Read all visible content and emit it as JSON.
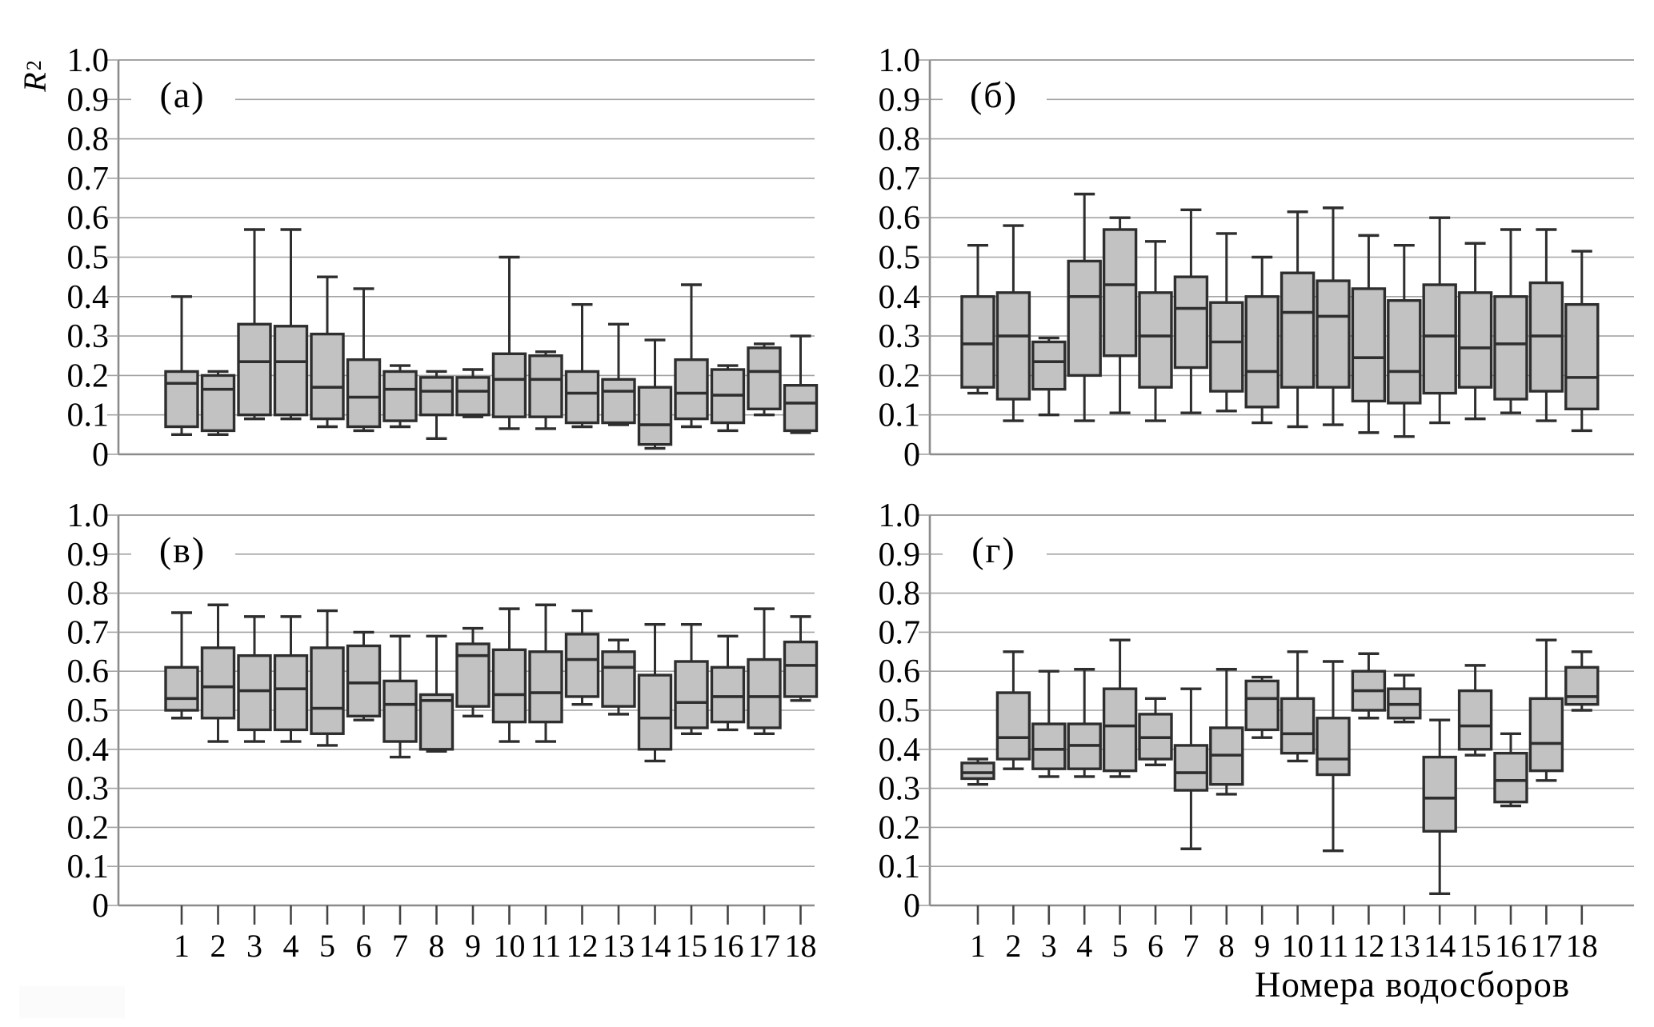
{
  "figure": {
    "y_axis_title_base": "R",
    "y_axis_title_sup": "2",
    "x_axis_title": "Номера водосборов",
    "y_tick_labels": [
      "1.0",
      "0.9",
      "0.8",
      "0.7",
      "0.6",
      "0.5",
      "0.4",
      "0.3",
      "0.2",
      "0.1",
      "0"
    ],
    "x_categories": [
      "1",
      "2",
      "3",
      "4",
      "5",
      "6",
      "7",
      "8",
      "9",
      "10",
      "11",
      "12",
      "13",
      "14",
      "15",
      "16",
      "17",
      "18"
    ]
  },
  "colors": {
    "background": "#ffffff",
    "box_fill": "#c2c2c2",
    "box_stroke": "#2e2e2e",
    "grid": "#a3a3a3",
    "axis": "#8c8c8c",
    "text": "#000000"
  },
  "chart_data": [
    {
      "type": "boxplot",
      "panel_label": "(а)",
      "position": "top-left",
      "ylabel": "R2",
      "ylim": [
        0,
        1.0
      ],
      "ytick_step": 0.1,
      "grid": true,
      "categories": [
        1,
        2,
        3,
        4,
        5,
        6,
        7,
        8,
        9,
        10,
        11,
        12,
        13,
        14,
        15,
        16,
        17,
        18
      ],
      "box_format": [
        "whisker_low",
        "q1",
        "median",
        "q3",
        "whisker_high"
      ],
      "boxes": [
        [
          0.05,
          0.07,
          0.18,
          0.21,
          0.4
        ],
        [
          0.05,
          0.06,
          0.165,
          0.2,
          0.21
        ],
        [
          0.09,
          0.1,
          0.235,
          0.33,
          0.57
        ],
        [
          0.09,
          0.1,
          0.235,
          0.325,
          0.57
        ],
        [
          0.07,
          0.09,
          0.17,
          0.305,
          0.45
        ],
        [
          0.06,
          0.07,
          0.145,
          0.24,
          0.42
        ],
        [
          0.07,
          0.085,
          0.165,
          0.21,
          0.225
        ],
        [
          0.04,
          0.1,
          0.16,
          0.195,
          0.21
        ],
        [
          0.095,
          0.1,
          0.16,
          0.195,
          0.215
        ],
        [
          0.065,
          0.095,
          0.19,
          0.255,
          0.5
        ],
        [
          0.065,
          0.095,
          0.19,
          0.25,
          0.26
        ],
        [
          0.07,
          0.08,
          0.155,
          0.21,
          0.38
        ],
        [
          0.075,
          0.08,
          0.16,
          0.19,
          0.33
        ],
        [
          0.015,
          0.025,
          0.075,
          0.17,
          0.29
        ],
        [
          0.07,
          0.09,
          0.155,
          0.24,
          0.43
        ],
        [
          0.06,
          0.08,
          0.15,
          0.215,
          0.225
        ],
        [
          0.1,
          0.115,
          0.21,
          0.27,
          0.28
        ],
        [
          0.055,
          0.06,
          0.13,
          0.175,
          0.3
        ]
      ]
    },
    {
      "type": "boxplot",
      "panel_label": "(б)",
      "position": "top-right",
      "ylabel": "R2",
      "ylim": [
        0,
        1.0
      ],
      "ytick_step": 0.1,
      "grid": true,
      "categories": [
        1,
        2,
        3,
        4,
        5,
        6,
        7,
        8,
        9,
        10,
        11,
        12,
        13,
        14,
        15,
        16,
        17,
        18
      ],
      "box_format": [
        "whisker_low",
        "q1",
        "median",
        "q3",
        "whisker_high"
      ],
      "boxes": [
        [
          0.155,
          0.17,
          0.28,
          0.4,
          0.53
        ],
        [
          0.085,
          0.14,
          0.3,
          0.41,
          0.58
        ],
        [
          0.1,
          0.165,
          0.235,
          0.285,
          0.295
        ],
        [
          0.085,
          0.2,
          0.4,
          0.49,
          0.66
        ],
        [
          0.105,
          0.25,
          0.43,
          0.57,
          0.6
        ],
        [
          0.085,
          0.17,
          0.3,
          0.41,
          0.54
        ],
        [
          0.105,
          0.22,
          0.37,
          0.45,
          0.62
        ],
        [
          0.11,
          0.16,
          0.285,
          0.385,
          0.56
        ],
        [
          0.08,
          0.12,
          0.21,
          0.4,
          0.5
        ],
        [
          0.07,
          0.17,
          0.36,
          0.46,
          0.615
        ],
        [
          0.075,
          0.17,
          0.35,
          0.44,
          0.625
        ],
        [
          0.055,
          0.135,
          0.245,
          0.42,
          0.555
        ],
        [
          0.045,
          0.13,
          0.21,
          0.39,
          0.53
        ],
        [
          0.08,
          0.155,
          0.3,
          0.43,
          0.6
        ],
        [
          0.09,
          0.17,
          0.27,
          0.41,
          0.535
        ],
        [
          0.105,
          0.14,
          0.28,
          0.4,
          0.57
        ],
        [
          0.085,
          0.16,
          0.3,
          0.435,
          0.57
        ],
        [
          0.06,
          0.115,
          0.195,
          0.38,
          0.515
        ]
      ]
    },
    {
      "type": "boxplot",
      "panel_label": "(в)",
      "position": "bottom-left",
      "ylabel": "R2",
      "ylim": [
        0,
        1.0
      ],
      "ytick_step": 0.1,
      "grid": true,
      "categories": [
        1,
        2,
        3,
        4,
        5,
        6,
        7,
        8,
        9,
        10,
        11,
        12,
        13,
        14,
        15,
        16,
        17,
        18
      ],
      "box_format": [
        "whisker_low",
        "q1",
        "median",
        "q3",
        "whisker_high"
      ],
      "boxes": [
        [
          0.48,
          0.5,
          0.53,
          0.61,
          0.75
        ],
        [
          0.42,
          0.48,
          0.56,
          0.66,
          0.77
        ],
        [
          0.42,
          0.45,
          0.55,
          0.64,
          0.74
        ],
        [
          0.42,
          0.45,
          0.555,
          0.64,
          0.74
        ],
        [
          0.41,
          0.44,
          0.505,
          0.66,
          0.755
        ],
        [
          0.475,
          0.485,
          0.57,
          0.665,
          0.7
        ],
        [
          0.38,
          0.42,
          0.515,
          0.575,
          0.69
        ],
        [
          0.395,
          0.4,
          0.525,
          0.54,
          0.69
        ],
        [
          0.485,
          0.51,
          0.64,
          0.67,
          0.71
        ],
        [
          0.42,
          0.47,
          0.54,
          0.655,
          0.76
        ],
        [
          0.42,
          0.47,
          0.545,
          0.65,
          0.77
        ],
        [
          0.515,
          0.535,
          0.63,
          0.695,
          0.755
        ],
        [
          0.49,
          0.51,
          0.61,
          0.65,
          0.68
        ],
        [
          0.37,
          0.4,
          0.48,
          0.59,
          0.72
        ],
        [
          0.44,
          0.455,
          0.52,
          0.625,
          0.72
        ],
        [
          0.45,
          0.47,
          0.535,
          0.61,
          0.69
        ],
        [
          0.44,
          0.455,
          0.535,
          0.63,
          0.76
        ],
        [
          0.525,
          0.535,
          0.615,
          0.675,
          0.74
        ]
      ]
    },
    {
      "type": "boxplot",
      "panel_label": "(г)",
      "position": "bottom-right",
      "ylabel": "R2",
      "ylim": [
        0,
        1.0
      ],
      "ytick_step": 0.1,
      "grid": true,
      "categories": [
        1,
        2,
        3,
        4,
        5,
        6,
        7,
        8,
        9,
        10,
        11,
        12,
        13,
        14,
        15,
        16,
        17,
        18
      ],
      "box_format": [
        "whisker_low",
        "q1",
        "median",
        "q3",
        "whisker_high"
      ],
      "boxes": [
        [
          0.31,
          0.325,
          0.34,
          0.365,
          0.375
        ],
        [
          0.35,
          0.375,
          0.43,
          0.545,
          0.65
        ],
        [
          0.33,
          0.35,
          0.4,
          0.465,
          0.6
        ],
        [
          0.33,
          0.35,
          0.41,
          0.465,
          0.605
        ],
        [
          0.33,
          0.345,
          0.46,
          0.555,
          0.68
        ],
        [
          0.36,
          0.375,
          0.43,
          0.49,
          0.53
        ],
        [
          0.145,
          0.295,
          0.34,
          0.41,
          0.555
        ],
        [
          0.285,
          0.31,
          0.385,
          0.455,
          0.605
        ],
        [
          0.43,
          0.45,
          0.53,
          0.575,
          0.585
        ],
        [
          0.37,
          0.39,
          0.44,
          0.53,
          0.65
        ],
        [
          0.14,
          0.335,
          0.375,
          0.48,
          0.625
        ],
        [
          0.48,
          0.5,
          0.55,
          0.6,
          0.645
        ],
        [
          0.47,
          0.48,
          0.515,
          0.555,
          0.59
        ],
        [
          0.03,
          0.19,
          0.275,
          0.38,
          0.475
        ],
        [
          0.385,
          0.4,
          0.46,
          0.55,
          0.615
        ],
        [
          0.255,
          0.265,
          0.32,
          0.39,
          0.44
        ],
        [
          0.32,
          0.345,
          0.415,
          0.53,
          0.68
        ],
        [
          0.5,
          0.515,
          0.535,
          0.61,
          0.65
        ]
      ]
    }
  ]
}
